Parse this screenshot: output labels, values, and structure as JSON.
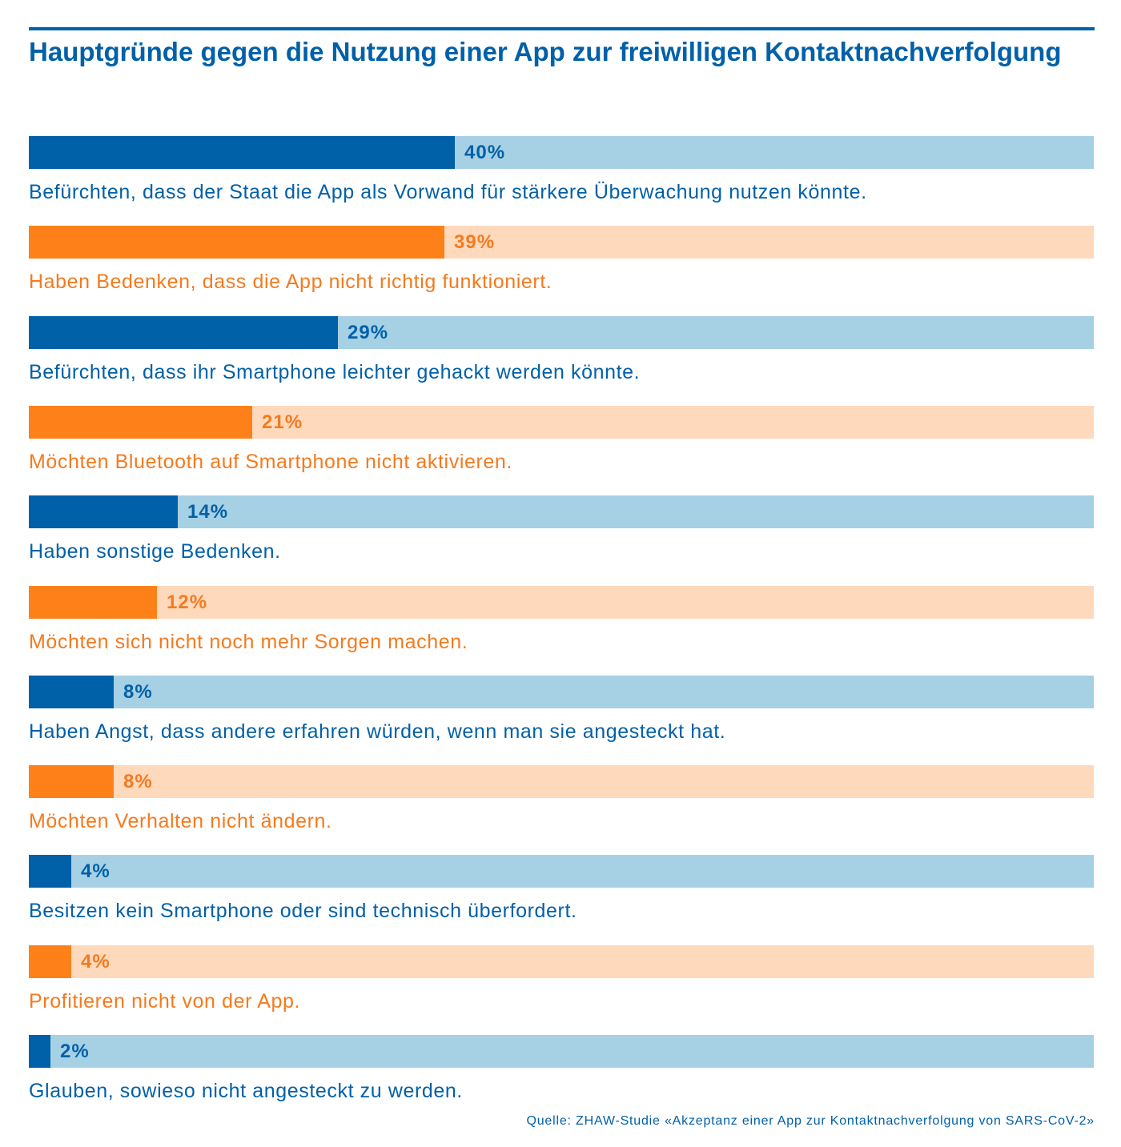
{
  "title": "Hauptgründe gegen die Nutzung einer App zur freiwilligen Kontaktnachverfolgung",
  "source": "Quelle: ZHAW-Studie «Akzeptanz einer App zur Kontaktnachverfolgung von SARS-CoV-2»",
  "colors": {
    "blue_fill": "#0060a8",
    "blue_track": "#a6d0e4",
    "orange_fill": "#fd8118",
    "orange_track": "#fed9bc",
    "blue_text": "#0060a8",
    "orange_text": "#f47a1e"
  },
  "chart_data": {
    "type": "bar",
    "orientation": "horizontal",
    "unit": "%",
    "xlim": [
      0,
      100
    ],
    "grid": false,
    "legend": "none",
    "categories": [
      "Befürchten, dass der Staat die App als Vorwand für stärkere Überwachung nutzen könnte.",
      "Haben Bedenken, dass die App nicht richtig funktioniert.",
      "Befürchten, dass ihr Smartphone leichter gehackt werden könnte.",
      "Möchten Bluetooth auf Smartphone nicht aktivieren.",
      "Haben sonstige Bedenken.",
      "Möchten sich nicht noch mehr Sorgen machen.",
      "Haben Angst, dass andere erfahren würden, wenn man sie angesteckt hat.",
      "Möchten Verhalten nicht ändern.",
      "Besitzen kein Smartphone oder sind technisch überfordert.",
      "Profitieren nicht von der App.",
      "Glauben, sowieso nicht angesteckt zu werden."
    ],
    "values": [
      40,
      39,
      29,
      21,
      14,
      12,
      8,
      8,
      4,
      4,
      2
    ],
    "value_labels": [
      "40%",
      "39%",
      "29%",
      "21%",
      "14%",
      "12%",
      "8%",
      "8%",
      "4%",
      "4%",
      "2%"
    ],
    "bar_colors": [
      "blue",
      "orange",
      "blue",
      "orange",
      "blue",
      "orange",
      "blue",
      "orange",
      "blue",
      "orange",
      "blue"
    ]
  }
}
